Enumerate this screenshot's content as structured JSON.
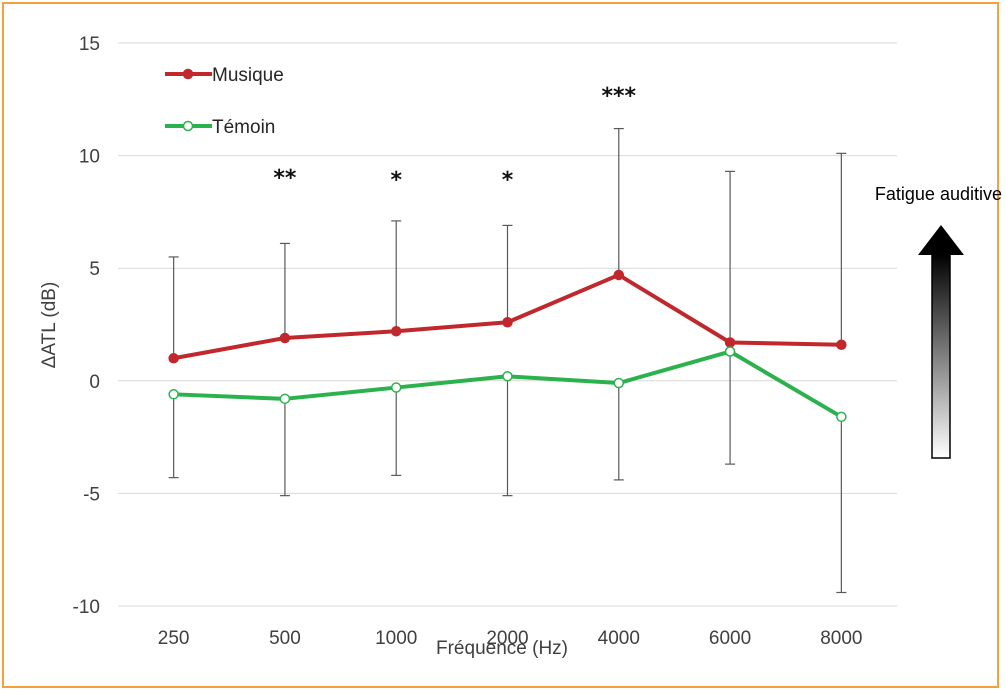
{
  "chart_data": {
    "type": "line",
    "xlabel": "Fréquence (Hz)",
    "ylabel": "ΔATL (dB)",
    "categories": [
      "250",
      "500",
      "1000",
      "2000",
      "4000",
      "6000",
      "8000"
    ],
    "ylim": [
      -10,
      15
    ],
    "yticks": [
      15,
      10,
      5,
      0,
      -5,
      -10
    ],
    "ytick_labels": [
      "15",
      "10",
      "5",
      "0",
      "-5",
      "-10"
    ],
    "grid": true,
    "legend_position": "top-left",
    "series": [
      {
        "name": "Musique",
        "color": "#c0282d",
        "marker": "filled-circle",
        "values": [
          1.0,
          1.9,
          2.2,
          2.6,
          4.7,
          1.7,
          1.6
        ],
        "error_upper": [
          5.5,
          6.1,
          7.1,
          6.9,
          11.2,
          9.3,
          10.1
        ]
      },
      {
        "name": "Témoin",
        "color": "#2bb24c",
        "marker": "open-circle",
        "values": [
          -0.6,
          -0.8,
          -0.3,
          0.2,
          -0.1,
          1.3,
          -1.6
        ],
        "error_lower": [
          -4.3,
          -5.1,
          -4.2,
          -5.1,
          -4.4,
          -3.7,
          -9.4
        ]
      }
    ],
    "significance": [
      "",
      "**",
      "*",
      "*",
      "***",
      "",
      ""
    ],
    "annotation": "Fatigue auditive"
  }
}
